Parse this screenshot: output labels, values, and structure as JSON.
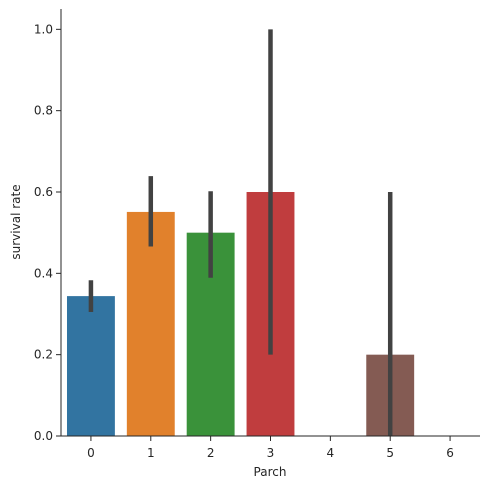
{
  "chart_data": {
    "type": "bar",
    "xlabel": "Parch",
    "ylabel": "survival rate",
    "ylim": [
      0,
      1.05
    ],
    "yticks": [
      "0.0",
      "0.2",
      "0.4",
      "0.6",
      "0.8",
      "1.0"
    ],
    "grid": false,
    "categories": [
      "0",
      "1",
      "2",
      "3",
      "4",
      "5",
      "6"
    ],
    "values": [
      0.344,
      0.551,
      0.5,
      0.6,
      0.0,
      0.2,
      0.0
    ],
    "error_bars": [
      [
        0.305,
        0.383
      ],
      [
        0.466,
        0.639
      ],
      [
        0.389,
        0.602
      ],
      [
        0.2,
        1.0
      ],
      null,
      [
        0.0,
        0.6
      ],
      null
    ],
    "colors": [
      "#3274a1",
      "#e1812c",
      "#3a923a",
      "#c03d3e",
      "#9372b2",
      "#845b53",
      "#d684bd"
    ],
    "errorbar_color": "#424242"
  }
}
